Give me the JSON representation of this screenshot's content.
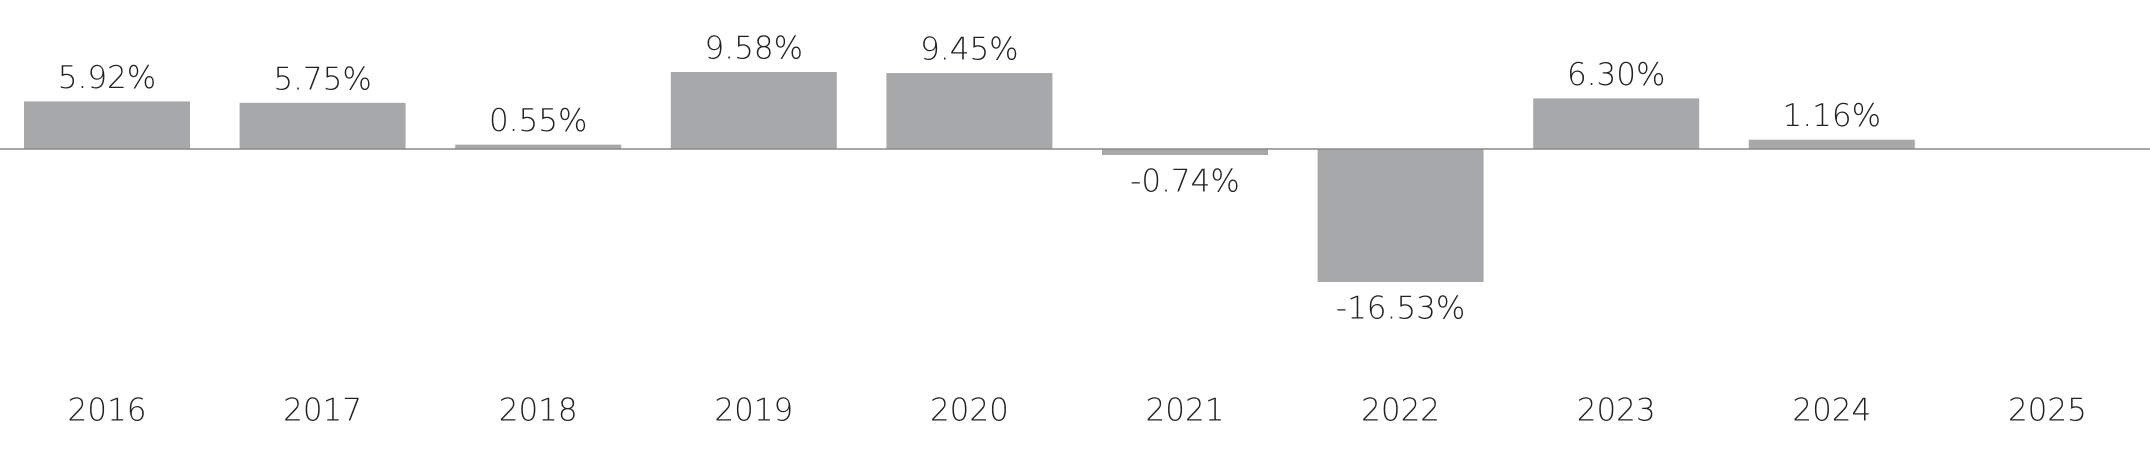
{
  "chart_data": {
    "type": "bar",
    "categories": [
      "2016",
      "2017",
      "2018",
      "2019",
      "2020",
      "2021",
      "2022",
      "2023",
      "2024",
      "2025"
    ],
    "values": [
      5.92,
      5.75,
      0.55,
      9.58,
      9.45,
      -0.74,
      -16.53,
      6.3,
      1.16,
      null
    ],
    "value_labels": [
      "5.92%",
      "5.75%",
      "0.55%",
      "9.58%",
      "9.45%",
      "-0.74%",
      "-16.53%",
      "6.30%",
      "1.16%",
      null
    ],
    "color": "#a7a8aa"
  }
}
